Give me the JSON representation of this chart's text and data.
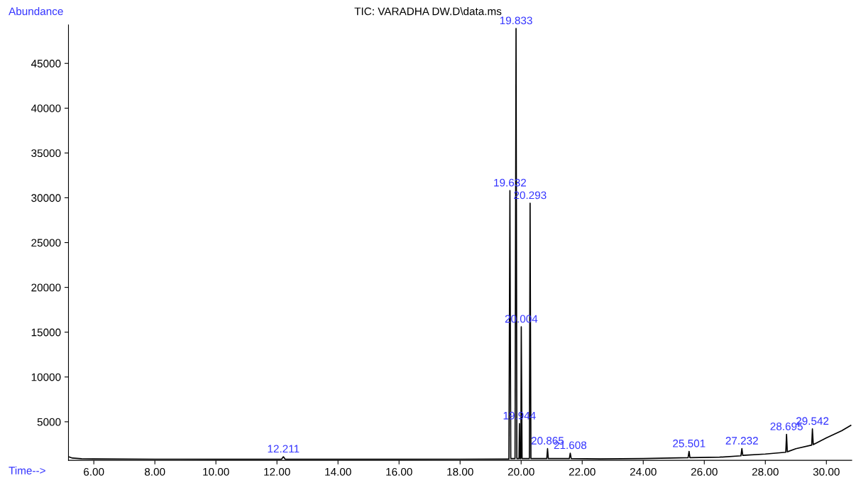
{
  "chart_data": {
    "type": "line",
    "title": "TIC: VARADHA DW.D\\data.ms",
    "xlabel": "Time-->",
    "ylabel": "Abundance",
    "x": [
      5.17,
      5.3,
      5.6,
      6.0,
      8.0,
      10.0,
      12.15,
      12.211,
      12.27,
      14.0,
      16.0,
      18.0,
      19.5,
      19.6,
      19.632,
      19.66,
      19.8,
      19.833,
      19.86,
      19.93,
      19.944,
      19.96,
      19.99,
      20.004,
      20.03,
      20.27,
      20.293,
      20.32,
      20.84,
      20.865,
      20.89,
      21.58,
      21.608,
      21.64,
      22.6,
      24.0,
      25.47,
      25.501,
      25.53,
      26.5,
      27.2,
      27.232,
      27.26,
      28.0,
      28.67,
      28.695,
      28.72,
      29.0,
      29.52,
      29.542,
      29.57,
      30.0,
      30.5,
      30.8
    ],
    "series": [
      {
        "color": "#000000",
        "values": [
          1100,
          950,
          880,
          850,
          830,
          820,
          820,
          1100,
          820,
          820,
          820,
          830,
          840,
          840,
          30800,
          900,
          900,
          48900,
          900,
          900,
          4800,
          900,
          900,
          15600,
          900,
          900,
          29400,
          900,
          900,
          2000,
          900,
          900,
          1500,
          900,
          860,
          900,
          1000,
          1700,
          1000,
          1050,
          1200,
          2000,
          1250,
          1400,
          1600,
          3600,
          1650,
          2000,
          2400,
          4200,
          2450,
          3200,
          4000,
          4600
        ]
      }
    ],
    "xlim": [
      5.17,
      30.83
    ],
    "ylim": [
      700,
      49300
    ],
    "xticks": [
      {
        "value": 6,
        "label": "6.00"
      },
      {
        "value": 8,
        "label": "8.00"
      },
      {
        "value": 10,
        "label": "10.00"
      },
      {
        "value": 12,
        "label": "12.00"
      },
      {
        "value": 14,
        "label": "14.00"
      },
      {
        "value": 16,
        "label": "16.00"
      },
      {
        "value": 18,
        "label": "18.00"
      },
      {
        "value": 20,
        "label": "20.00"
      },
      {
        "value": 22,
        "label": "22.00"
      },
      {
        "value": 24,
        "label": "24.00"
      },
      {
        "value": 26,
        "label": "26.00"
      },
      {
        "value": 28,
        "label": "28.00"
      },
      {
        "value": 30,
        "label": "30.00"
      }
    ],
    "yticks": [
      5000,
      10000,
      15000,
      20000,
      25000,
      30000,
      35000,
      40000,
      45000
    ],
    "grid": false,
    "annotations": [
      {
        "text": "12.211",
        "x": 12.211,
        "y": 1100
      },
      {
        "text": "19.632",
        "x": 19.632,
        "y": 30800
      },
      {
        "text": "19.833",
        "x": 19.833,
        "y": 48900
      },
      {
        "text": "19.944",
        "x": 19.944,
        "y": 4800
      },
      {
        "text": "20.004",
        "x": 20.004,
        "y": 15600
      },
      {
        "text": "20.293",
        "x": 20.293,
        "y": 29400
      },
      {
        "text": "20.865",
        "x": 20.865,
        "y": 2000
      },
      {
        "text": "21.608",
        "x": 21.608,
        "y": 1500
      },
      {
        "text": "25.501",
        "x": 25.501,
        "y": 1700
      },
      {
        "text": "27.232",
        "x": 27.232,
        "y": 2000
      },
      {
        "text": "28.695",
        "x": 28.695,
        "y": 3600
      },
      {
        "text": "29.542",
        "x": 29.542,
        "y": 4200
      }
    ]
  }
}
